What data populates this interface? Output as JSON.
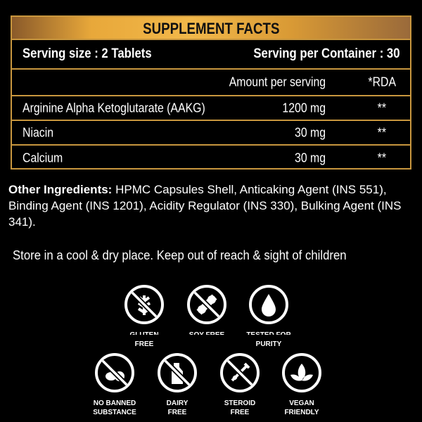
{
  "title": "SUPPLEMENT FACTS",
  "serving_size": "Serving size : 2 Tablets",
  "serving_per_container": "Serving per Container : 30",
  "columns": {
    "amount": "Amount per serving",
    "rda": "*RDA"
  },
  "nutrients": [
    {
      "name": "Arginine Alpha Ketoglutarate (AAKG)",
      "amount": "1200 mg",
      "rda": "**"
    },
    {
      "name": "Niacin",
      "amount": "30 mg",
      "rda": "**"
    },
    {
      "name": "Calcium",
      "amount": "30 mg",
      "rda": "**"
    }
  ],
  "other_ingredients": {
    "label": "Other Ingredients:",
    "text": " HPMC Capsules Shell, Anticaking Agent (INS 551), Binding Agent (INS 1201), Acidity Regulator (INS 330), Bulking Agent (INS 341)."
  },
  "storage": "Store in a cool & dry place. Keep out of reach & sight of children",
  "badges": [
    {
      "icon": "gluten-free-icon",
      "line1": "GLUTEN",
      "line2": "FREE"
    },
    {
      "icon": "soy-free-icon",
      "line1": "SOY FREE",
      "line2": ""
    },
    {
      "icon": "purity-drop-icon",
      "line1": "TESTED FOR",
      "line2": "PURITY"
    },
    {
      "icon": "no-banned-substance-icon",
      "line1": "NO BANNED",
      "line2": "SUBSTANCE"
    },
    {
      "icon": "dairy-free-icon",
      "line1": "DAIRY",
      "line2": "FREE"
    },
    {
      "icon": "steroid-free-icon",
      "line1": "STEROID",
      "line2": "FREE"
    },
    {
      "icon": "vegan-icon",
      "line1": "VEGAN",
      "line2": "FRIENDLY"
    }
  ]
}
